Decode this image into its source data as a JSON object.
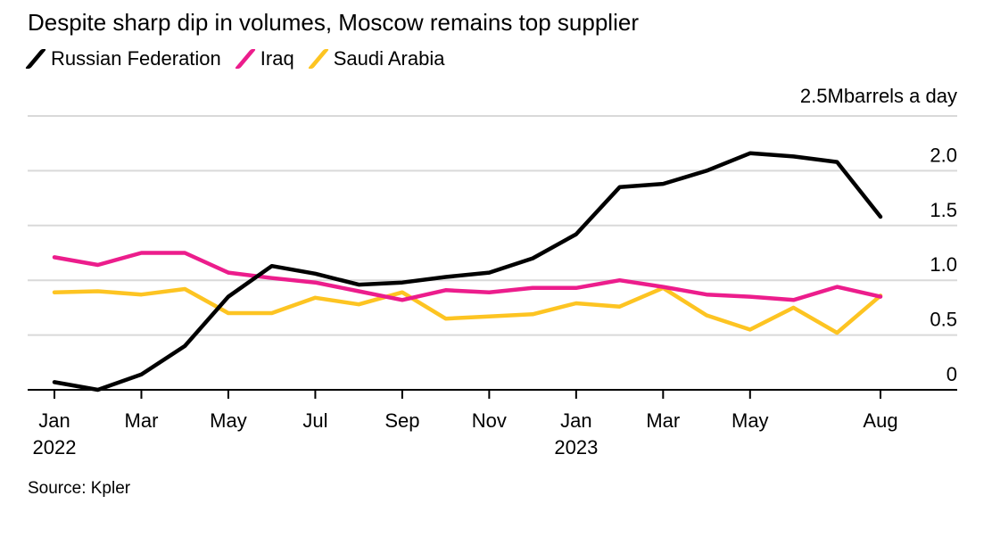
{
  "title": "Despite sharp dip in volumes, Moscow remains top supplier",
  "source": "Source: Kpler",
  "colors": {
    "russia": "#000000",
    "iraq": "#ec1d8c",
    "saudi": "#fdc422",
    "grid": "#d9d9d9"
  },
  "chart_data": {
    "type": "line",
    "title": "Despite sharp dip in volumes, Moscow remains top supplier",
    "unit_label": "2.5Mbarrels a day",
    "ylim": [
      0,
      2.5
    ],
    "yticks": [
      0,
      0.5,
      1.0,
      1.5,
      2.0,
      2.5
    ],
    "ytick_labels": [
      "0",
      "0.5",
      "1.0",
      "1.5",
      "2.0",
      ""
    ],
    "grid": true,
    "legend_position": "top-left",
    "x": [
      "2022-01",
      "2022-02",
      "2022-03",
      "2022-04",
      "2022-05",
      "2022-06",
      "2022-07",
      "2022-08",
      "2022-09",
      "2022-10",
      "2022-11",
      "2022-12",
      "2023-01",
      "2023-02",
      "2023-03",
      "2023-04",
      "2023-05",
      "2023-06",
      "2023-07",
      "2023-08"
    ],
    "x_tick_labels": [
      {
        "month": "Jan",
        "year": "2022",
        "index": 0
      },
      {
        "month": "Mar",
        "year": "",
        "index": 2
      },
      {
        "month": "May",
        "year": "",
        "index": 4
      },
      {
        "month": "Jul",
        "year": "",
        "index": 6
      },
      {
        "month": "Sep",
        "year": "",
        "index": 8
      },
      {
        "month": "Nov",
        "year": "",
        "index": 10
      },
      {
        "month": "Jan",
        "year": "2023",
        "index": 12
      },
      {
        "month": "Mar",
        "year": "",
        "index": 14
      },
      {
        "month": "May",
        "year": "",
        "index": 16
      },
      {
        "month": "Aug",
        "year": "",
        "index": 19
      }
    ],
    "series": [
      {
        "name": "Russian Federation",
        "color": "#000000",
        "values": [
          0.07,
          0.0,
          0.14,
          0.4,
          0.85,
          1.13,
          1.06,
          0.96,
          0.98,
          1.03,
          1.07,
          1.2,
          1.42,
          1.85,
          1.88,
          2.0,
          2.16,
          2.13,
          2.08,
          1.58
        ]
      },
      {
        "name": "Iraq",
        "color": "#ec1d8c",
        "values": [
          1.21,
          1.14,
          1.25,
          1.25,
          1.07,
          1.02,
          0.98,
          0.9,
          0.82,
          0.91,
          0.89,
          0.93,
          0.93,
          1.0,
          0.94,
          0.87,
          0.85,
          0.82,
          0.94,
          0.85
        ]
      },
      {
        "name": "Saudi Arabia",
        "color": "#fdc422",
        "values": [
          0.89,
          0.9,
          0.87,
          0.92,
          0.7,
          0.7,
          0.84,
          0.78,
          0.89,
          0.65,
          0.67,
          0.69,
          0.79,
          0.76,
          0.93,
          0.68,
          0.55,
          0.75,
          0.52,
          0.86
        ]
      }
    ]
  }
}
